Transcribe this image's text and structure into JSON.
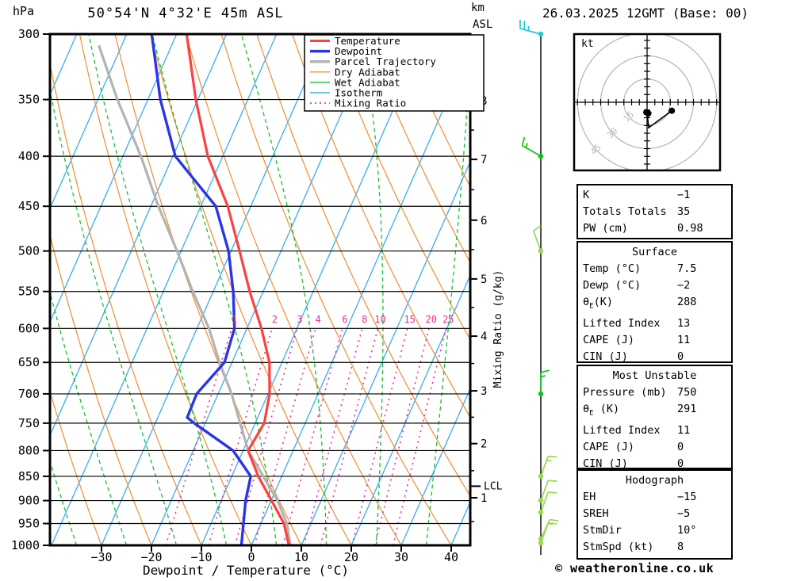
{
  "header": {
    "pressure_unit": "hPa",
    "title": "50°54'N 4°32'E 45m ASL",
    "datetime": "26.03.2025 12GMT (Base: 00)",
    "alt_unit": "km",
    "alt_datum": "ASL"
  },
  "legend": {
    "items": [
      {
        "label": "Temperature",
        "color": "#f94341",
        "dash": "",
        "width": 3
      },
      {
        "label": "Dewpoint",
        "color": "#2a35e8",
        "dash": "",
        "width": 3.5
      },
      {
        "label": "Parcel Trajectory",
        "color": "#b3b3b3",
        "dash": "",
        "width": 3.5
      },
      {
        "label": "Dry Adiabat",
        "color": "#f0953f",
        "dash": "",
        "width": 1.4
      },
      {
        "label": "Wet Adiabat",
        "color": "#15c02f",
        "dash": "",
        "width": 1.4
      },
      {
        "label": "Isotherm",
        "color": "#45b1ef",
        "dash": "",
        "width": 1.4
      },
      {
        "label": "Mixing Ratio",
        "color": "#ee2a94",
        "dash": "2,4",
        "width": 1.6
      }
    ]
  },
  "axes": {
    "pressure_ticks": [
      300,
      350,
      400,
      450,
      500,
      550,
      600,
      650,
      700,
      750,
      800,
      850,
      900,
      950,
      1000
    ],
    "temp_ticks": [
      -30,
      -20,
      -10,
      0,
      10,
      20,
      30,
      40
    ],
    "xlabel": "Dewpoint / Temperature (°C)",
    "right_label": "Mixing Ratio (g/kg)",
    "km_ticks": [
      {
        "km": 8,
        "hpa": 351
      },
      {
        "km": 7,
        "hpa": 403
      },
      {
        "km": 6,
        "hpa": 465
      },
      {
        "km": 5,
        "hpa": 534
      },
      {
        "km": 4,
        "hpa": 611
      },
      {
        "km": 3,
        "hpa": 695
      },
      {
        "km": 2,
        "hpa": 787
      },
      {
        "km": 1,
        "hpa": 894
      }
    ],
    "lcl_label": "LCL",
    "lcl_hpa": 870
  },
  "chart_data": {
    "type": "line",
    "subtype": "skew-t log-p sounding",
    "title": "50°54'N 4°32'E 45m ASL",
    "xlabel": "Dewpoint / Temperature (°C)",
    "ylabel": "hPa",
    "x_ticks_c": [
      -30,
      -20,
      -10,
      0,
      10,
      20,
      30,
      40
    ],
    "pressure_range_hpa": [
      300,
      1000
    ],
    "lcl_hpa": 870,
    "mixing_ratio_lines_gkg": [
      1,
      2,
      3,
      4,
      6,
      8,
      10,
      15,
      20,
      25
    ],
    "isotherms_c": {
      "from": -80,
      "to": 40,
      "step": 10
    },
    "dry_adiabats_theta_c": {
      "from": -40,
      "to": 110,
      "step": 10
    },
    "wet_adiabats_thetaw_c": {
      "from": -55,
      "to": 45,
      "step": 10
    },
    "series": [
      {
        "name": "Temperature",
        "unit": "°C vs hPa",
        "points": [
          [
            300,
            -58
          ],
          [
            350,
            -50.4
          ],
          [
            400,
            -43
          ],
          [
            450,
            -34.6
          ],
          [
            500,
            -28.3
          ],
          [
            550,
            -22.7
          ],
          [
            600,
            -17.1
          ],
          [
            650,
            -12.5
          ],
          [
            700,
            -9.7
          ],
          [
            750,
            -8.2
          ],
          [
            800,
            -9
          ],
          [
            850,
            -4.7
          ],
          [
            900,
            0.1
          ],
          [
            950,
            4.6
          ],
          [
            1000,
            7.5
          ]
        ]
      },
      {
        "name": "Dewpoint",
        "unit": "°C vs hPa",
        "points": [
          [
            300,
            -65
          ],
          [
            350,
            -57.5
          ],
          [
            400,
            -49.5
          ],
          [
            450,
            -37
          ],
          [
            500,
            -30.5
          ],
          [
            550,
            -26
          ],
          [
            600,
            -22.5
          ],
          [
            650,
            -21.5
          ],
          [
            700,
            -24.3
          ],
          [
            740,
            -24.1
          ],
          [
            750,
            -22.2
          ],
          [
            800,
            -12
          ],
          [
            850,
            -6.2
          ],
          [
            900,
            -5.1
          ],
          [
            950,
            -3.5
          ],
          [
            1000,
            -2
          ]
        ]
      },
      {
        "name": "Parcel Trajectory",
        "unit": "°C vs hPa",
        "points": [
          [
            308,
            -74.6
          ],
          [
            350,
            -66.1
          ],
          [
            400,
            -56.4
          ],
          [
            450,
            -48.5
          ],
          [
            500,
            -40.8
          ],
          [
            550,
            -34.1
          ],
          [
            600,
            -27.6
          ],
          [
            650,
            -22.5
          ],
          [
            700,
            -17.3
          ],
          [
            750,
            -13
          ],
          [
            800,
            -9
          ],
          [
            850,
            -3.7
          ],
          [
            900,
            1.3
          ],
          [
            950,
            5.2
          ],
          [
            1000,
            7.8
          ]
        ]
      }
    ]
  },
  "wind_barbs": {
    "unit": "kt",
    "items": [
      {
        "hpa": 300,
        "dir_deg": 285,
        "speed_kt": 25,
        "color": "#1ecbd0"
      },
      {
        "hpa": 400,
        "dir_deg": 300,
        "speed_kt": 15,
        "color": "#0cc41c"
      },
      {
        "hpa": 500,
        "dir_deg": 340,
        "speed_kt": 10,
        "color": "#97d94e"
      },
      {
        "hpa": 700,
        "dir_deg": 0,
        "speed_kt": 15,
        "color": "#0cc41c"
      },
      {
        "hpa": 850,
        "dir_deg": 20,
        "speed_kt": 15,
        "color": "#97d94e"
      },
      {
        "hpa": 900,
        "dir_deg": 20,
        "speed_kt": 10,
        "color": "#97d94e"
      },
      {
        "hpa": 925,
        "dir_deg": 20,
        "speed_kt": 10,
        "color": "#97d94e"
      },
      {
        "hpa": 985,
        "dir_deg": 25,
        "speed_kt": 15,
        "color": "#97d94e"
      },
      {
        "hpa": 995,
        "dir_deg": 20,
        "speed_kt": 10,
        "color": "#97d94e"
      }
    ]
  },
  "hodograph": {
    "unit_label": "kt",
    "rings_kt": [
      15,
      30,
      45
    ],
    "trace_kt": [
      [
        16,
        5.5
      ],
      [
        1,
        16.5
      ],
      [
        0,
        7
      ],
      [
        -1.5,
        6
      ]
    ],
    "dots_kt": [
      [
        16,
        5.5
      ],
      [
        -0.5,
        6.5
      ],
      [
        0.8,
        7.2
      ]
    ]
  },
  "tables": [
    {
      "header": null,
      "rows": [
        [
          "K",
          "−1"
        ],
        [
          "Totals Totals",
          "35"
        ],
        [
          "PW (cm)",
          "0.98"
        ]
      ]
    },
    {
      "header": "Surface",
      "rows": [
        [
          "Temp (°C)",
          "7.5"
        ],
        [
          "Dewp (°C)",
          "−2"
        ],
        [
          "θE(K)",
          "288"
        ],
        [
          "Lifted Index",
          "13"
        ],
        [
          "CAPE (J)",
          "11"
        ],
        [
          "CIN (J)",
          "0"
        ]
      ]
    },
    {
      "header": "Most Unstable",
      "rows": [
        [
          "Pressure (mb)",
          "750"
        ],
        [
          "θE (K)",
          "291"
        ],
        [
          "Lifted Index",
          "11"
        ],
        [
          "CAPE (J)",
          "0"
        ],
        [
          "CIN (J)",
          "0"
        ]
      ]
    },
    {
      "header": "Hodograph",
      "rows": [
        [
          "EH",
          "−15"
        ],
        [
          "SREH",
          "−5"
        ],
        [
          "StmDir",
          "10°"
        ],
        [
          "StmSpd (kt)",
          "8"
        ]
      ]
    }
  ],
  "copyright": "© weatheronline.co.uk",
  "colors": {
    "temperature": "#f94341",
    "dewpoint": "#2a35e8",
    "parcel": "#b3b3b3",
    "dry_adiabat": "#f0953f",
    "wet_adiabat": "#15c02f",
    "isotherm": "#45b1ef",
    "mixing_ratio": "#ee2a94",
    "grid": "#000000",
    "hodo_rings": "#b9b9b9",
    "barb_upper": "#1ecbd0",
    "barb_mid": "#0cc41c",
    "barb_low": "#97d94e"
  }
}
